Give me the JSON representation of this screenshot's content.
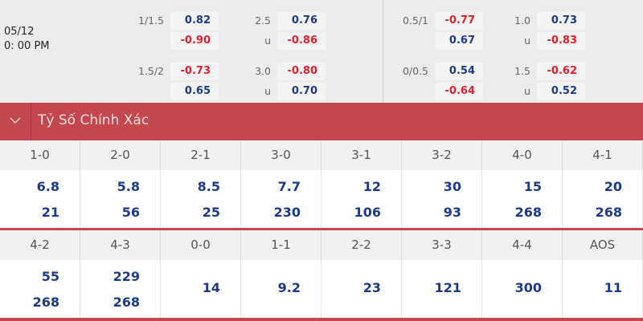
{
  "match": {
    "date": "05/12",
    "time": "0: 00 PM"
  },
  "odds_left": [
    {
      "hdp": "1/1.5",
      "home": "0.82",
      "away": "-0.90",
      "ou": "2.5",
      "over": "0.76",
      "under_label": "u",
      "under": "-0.86"
    },
    {
      "hdp": "1.5/2",
      "home": "-0.73",
      "away": "0.65",
      "ou": "3.0",
      "over": "-0.80",
      "under_label": "u",
      "under": "0.70"
    }
  ],
  "odds_right": [
    {
      "hdp": "0.5/1",
      "home": "-0.77",
      "away": "0.67",
      "ou": "1.0",
      "over": "0.73",
      "under_label": "u",
      "under": "-0.83"
    },
    {
      "hdp": "0/0.5",
      "home": "0.54",
      "away": "-0.64",
      "ou": "1.5",
      "over": "-0.62",
      "under_label": "u",
      "under": "0.52"
    }
  ],
  "colors": {
    "accent": "#c4464e",
    "positive": "#1b3a8c",
    "negative": "#e41f2b"
  },
  "section": {
    "title": "Tỷ Số Chính Xác",
    "icon": "chevron-down-icon"
  },
  "scores_row1": [
    {
      "score": "1-0",
      "v1": "6.8",
      "v2": "21"
    },
    {
      "score": "2-0",
      "v1": "5.8",
      "v2": "56"
    },
    {
      "score": "2-1",
      "v1": "8.5",
      "v2": "25"
    },
    {
      "score": "3-0",
      "v1": "7.7",
      "v2": "230"
    },
    {
      "score": "3-1",
      "v1": "12",
      "v2": "106"
    },
    {
      "score": "3-2",
      "v1": "30",
      "v2": "93"
    },
    {
      "score": "4-0",
      "v1": "15",
      "v2": "268"
    },
    {
      "score": "4-1",
      "v1": "20",
      "v2": "268"
    }
  ],
  "scores_row2": [
    {
      "score": "4-2",
      "v1": "55",
      "v2": "268"
    },
    {
      "score": "4-3",
      "v1": "229",
      "v2": "268"
    },
    {
      "score": "0-0",
      "v1": "14"
    },
    {
      "score": "1-1",
      "v1": "9.2"
    },
    {
      "score": "2-2",
      "v1": "23"
    },
    {
      "score": "3-3",
      "v1": "121"
    },
    {
      "score": "4-4",
      "v1": "300"
    },
    {
      "score": "AOS",
      "v1": "11"
    }
  ]
}
